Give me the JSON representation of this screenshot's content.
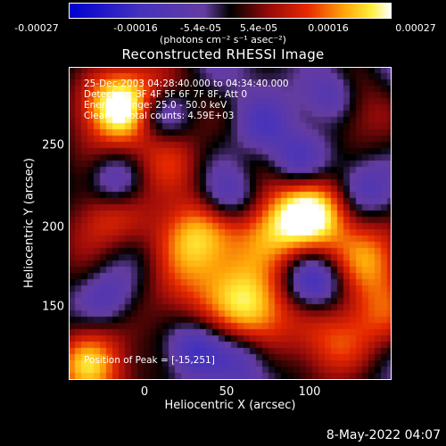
{
  "colorbar": {
    "ticks": [
      "-0.00027",
      "-0.00016",
      "-5.4e-05",
      "5.4e-05",
      "0.00016",
      "0.00027"
    ],
    "tick_values": [
      -0.00027,
      -0.00016,
      -5.4e-05,
      5.4e-05,
      0.00016,
      0.00027
    ],
    "unit_label": "(photons cm⁻² s⁻¹ asec⁻²)"
  },
  "info": {
    "time_range": "25-Dec-2003 04:28:40.000 to 04:34:40.000",
    "detectors": "Detectors: 3F 4F 5F 6F 7F 8F, Att 0",
    "energy": "Energy Range: 25.0 - 50.0 keV",
    "clean": "Clean     Total counts: 4.59E+03",
    "peak": "Position of Peak = [-15,251]"
  },
  "footer": {
    "date": "8-May-2022 04:07"
  },
  "chart_data": {
    "type": "heatmap",
    "title": "Reconstructed RHESSI Image",
    "xlabel": "Heliocentric X (arcsec)",
    "ylabel": "Heliocentric Y (arcsec)",
    "xlim": [
      -47,
      140
    ],
    "ylim": [
      103,
      285
    ],
    "xticks": [
      0,
      50,
      100
    ],
    "yticks": [
      150,
      200,
      250
    ],
    "colormap": "blue-purple-red-yellow-white",
    "blobs": [
      {
        "x": -20,
        "y": 262,
        "value": 1.0
      },
      {
        "x": -35,
        "y": 110,
        "value": 0.95
      },
      {
        "x": 95,
        "y": 200,
        "value": 0.95
      },
      {
        "x": 60,
        "y": 145,
        "value": 0.9
      },
      {
        "x": 70,
        "y": 190,
        "value": 0.75
      },
      {
        "x": 25,
        "y": 190,
        "value": 0.7
      },
      {
        "x": -30,
        "y": 195,
        "value": 0.6
      },
      {
        "x": 130,
        "y": 175,
        "value": 0.65
      },
      {
        "x": 10,
        "y": 230,
        "value": 0.5
      },
      {
        "x": -5,
        "y": 265,
        "value": 0.45
      },
      {
        "x": 105,
        "y": 125,
        "value": 0.55
      },
      {
        "x": 15,
        "y": 150,
        "value": 0.45
      },
      {
        "x": 40,
        "y": 170,
        "value": 0.4
      },
      {
        "x": 120,
        "y": 260,
        "value": 0.35
      },
      {
        "x": 130,
        "y": 140,
        "value": 0.5
      }
    ],
    "minima": [
      {
        "x": 5,
        "y": 258,
        "value": -0.9
      },
      {
        "x": -20,
        "y": 218,
        "value": -0.7
      },
      {
        "x": 105,
        "y": 268,
        "value": -0.75
      },
      {
        "x": 85,
        "y": 230,
        "value": -0.6
      },
      {
        "x": 45,
        "y": 210,
        "value": -0.7
      },
      {
        "x": 95,
        "y": 160,
        "value": -0.85
      },
      {
        "x": 25,
        "y": 120,
        "value": -0.8
      },
      {
        "x": -25,
        "y": 150,
        "value": -0.6
      },
      {
        "x": 125,
        "y": 215,
        "value": -0.55
      },
      {
        "x": 65,
        "y": 250,
        "value": -0.5
      },
      {
        "x": 55,
        "y": 115,
        "value": -0.5
      }
    ]
  }
}
